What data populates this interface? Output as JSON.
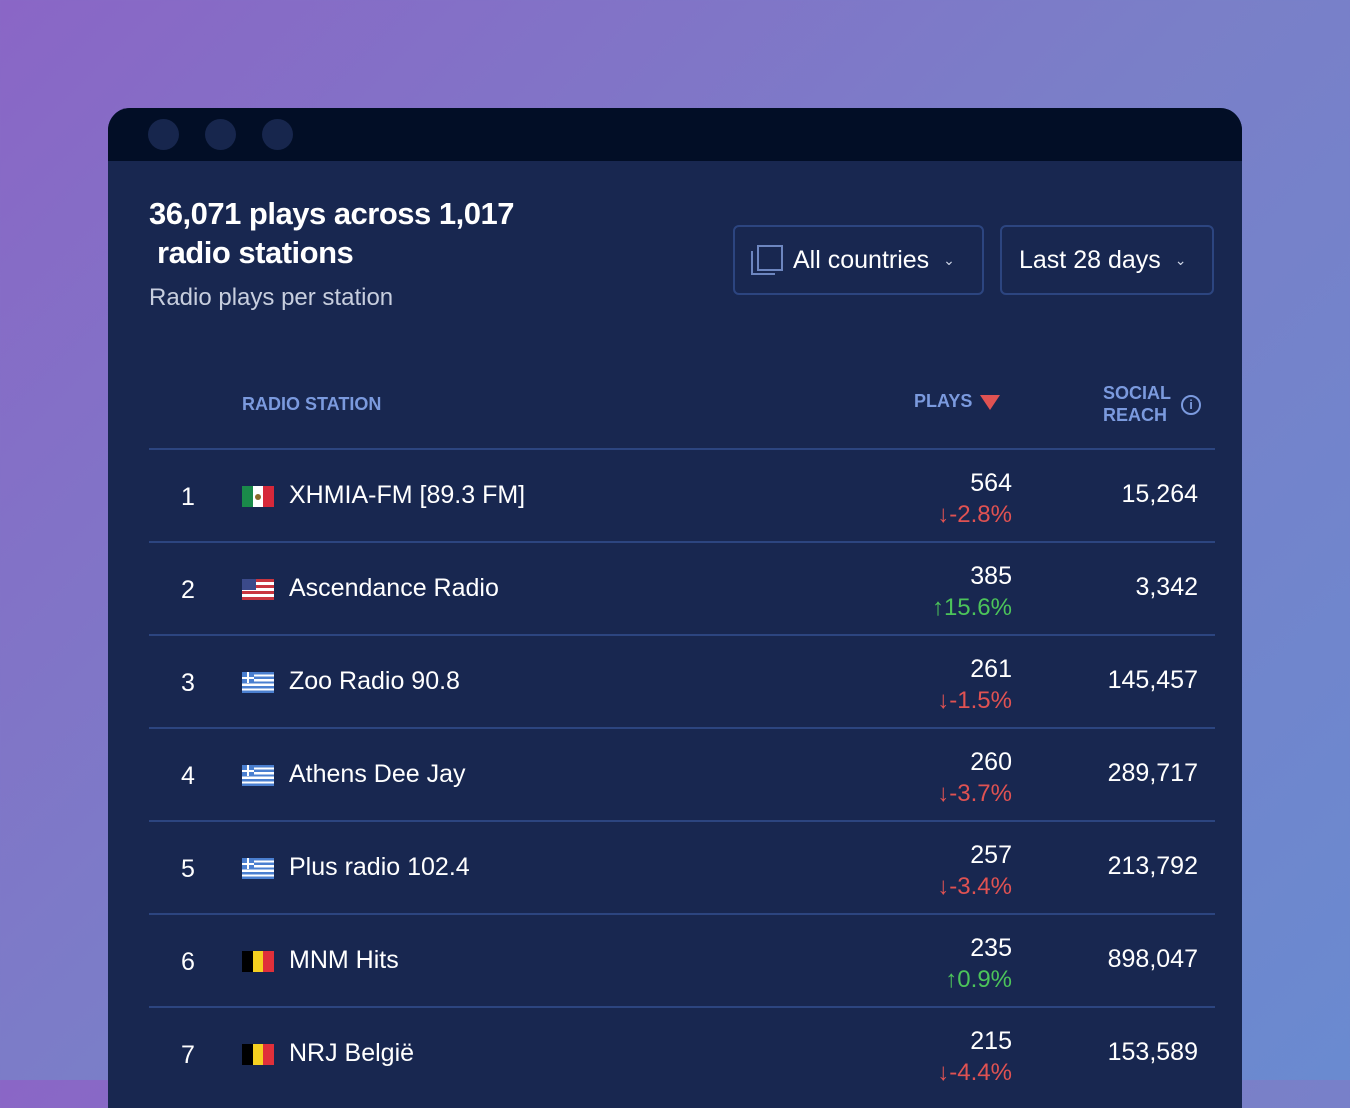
{
  "header": {
    "title_line1": "36,071 plays across 1,017",
    "title_line2": "radio stations",
    "subtitle": "Radio plays per station"
  },
  "filters": {
    "country": "All countries",
    "period": "Last 28 days"
  },
  "columns": {
    "station": "RADIO STATION",
    "plays": "PLAYS",
    "reach_line1": "SOCIAL",
    "reach_line2": "REACH",
    "info": "i"
  },
  "colors": {
    "down": "#e05252",
    "up": "#4cc45a",
    "bg": "#182750"
  },
  "rows": [
    {
      "rank": "1",
      "flag": "mx",
      "name": "XHMIA-FM [89.3 FM]",
      "plays": "564",
      "change": "↓-2.8%",
      "dir": "down",
      "reach": "15,264"
    },
    {
      "rank": "2",
      "flag": "us",
      "name": "Ascendance Radio",
      "plays": "385",
      "change": "↑15.6%",
      "dir": "up",
      "reach": "3,342"
    },
    {
      "rank": "3",
      "flag": "gr",
      "name": "Zoo Radio 90.8",
      "plays": "261",
      "change": "↓-1.5%",
      "dir": "down",
      "reach": "145,457"
    },
    {
      "rank": "4",
      "flag": "gr",
      "name": "Athens Dee Jay",
      "plays": "260",
      "change": "↓-3.7%",
      "dir": "down",
      "reach": "289,717"
    },
    {
      "rank": "5",
      "flag": "gr",
      "name": "Plus radio 102.4",
      "plays": "257",
      "change": "↓-3.4%",
      "dir": "down",
      "reach": "213,792"
    },
    {
      "rank": "6",
      "flag": "be",
      "name": "MNM Hits",
      "plays": "235",
      "change": "↑0.9%",
      "dir": "up",
      "reach": "898,047"
    },
    {
      "rank": "7",
      "flag": "be",
      "name": "NRJ België",
      "plays": "215",
      "change": "↓-4.4%",
      "dir": "down",
      "reach": "153,589"
    }
  ]
}
